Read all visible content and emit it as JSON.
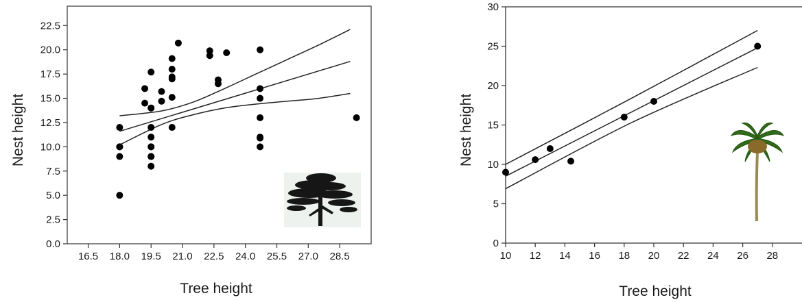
{
  "chart_data": [
    {
      "type": "scatter",
      "xlabel": "Tree height",
      "ylabel": "Nest height",
      "xlim": [
        15.5,
        30.0
      ],
      "ylim": [
        0,
        24.5
      ],
      "xticks": [
        "16.5",
        "18.0",
        "19.5",
        "21.0",
        "22.5",
        "24.0",
        "25.5",
        "27.0",
        "28.5"
      ],
      "yticks": [
        "0.0",
        "2.5",
        "5.0",
        "7.5",
        "10.0",
        "12.5",
        "15.0",
        "17.5",
        "20.0",
        "22.5"
      ],
      "grid": false,
      "legend": "none",
      "image": "cedar-tree-silhouette",
      "points": {
        "x": [
          18.0,
          18.0,
          18.0,
          18.0,
          18.0,
          19.2,
          19.2,
          19.5,
          19.5,
          19.5,
          19.5,
          19.5,
          19.5,
          19.5,
          19.5,
          19.5,
          19.5,
          20.0,
          20.0,
          20.5,
          20.5,
          20.5,
          20.5,
          20.5,
          20.5,
          20.8,
          22.3,
          22.3,
          22.7,
          22.7,
          23.1,
          24.7,
          24.7,
          24.7,
          24.7,
          24.7,
          24.7,
          24.7,
          29.3
        ],
        "y": [
          12.0,
          10.0,
          10.0,
          9.0,
          5.0,
          16.0,
          14.5,
          17.7,
          14.0,
          14.0,
          12.0,
          11.0,
          10.0,
          10.0,
          9.0,
          9.0,
          8.0,
          15.7,
          14.7,
          19.1,
          18.0,
          17.0,
          17.2,
          15.1,
          12.0,
          20.7,
          19.9,
          19.4,
          16.9,
          16.5,
          19.7,
          20.0,
          16.0,
          15.0,
          13.0,
          11.0,
          10.9,
          10.0,
          13.0
        ]
      },
      "fit": {
        "x": [
          18.0,
          29.0
        ],
        "y": [
          11.6,
          18.8
        ]
      },
      "ci_upper": {
        "x": [
          18.0,
          20.0,
          21.5,
          23.0,
          24.5,
          26.0,
          27.5,
          29.0
        ],
        "y": [
          13.2,
          13.7,
          14.6,
          16.0,
          17.5,
          19.0,
          20.5,
          22.1
        ]
      },
      "ci_lower": {
        "x": [
          18.0,
          20.0,
          21.5,
          23.0,
          24.5,
          26.0,
          27.5,
          29.0
        ],
        "y": [
          10.2,
          12.3,
          13.3,
          14.0,
          14.4,
          14.7,
          15.0,
          15.5
        ]
      }
    },
    {
      "type": "scatter",
      "xlabel": "Tree height",
      "ylabel": "Nest height",
      "xlim": [
        10,
        30
      ],
      "ylim": [
        0,
        30
      ],
      "xticks": [
        "10",
        "12",
        "14",
        "16",
        "18",
        "20",
        "22",
        "24",
        "26",
        "28"
      ],
      "yticks": [
        "0",
        "5",
        "10",
        "15",
        "20",
        "25",
        "30"
      ],
      "grid": false,
      "legend": "none",
      "image": "palm-tree",
      "points": {
        "x": [
          10.0,
          12.0,
          13.0,
          14.4,
          18.0,
          20.0,
          27.0
        ],
        "y": [
          9.0,
          10.6,
          12.0,
          10.4,
          16.0,
          18.0,
          25.0
        ]
      },
      "fit": {
        "x": [
          10.0,
          27.0
        ],
        "y": [
          8.5,
          24.8
        ]
      },
      "ci_upper": {
        "x": [
          10.0,
          18.5,
          27.0
        ],
        "y": [
          10.0,
          18.4,
          27.0
        ]
      },
      "ci_lower": {
        "x": [
          10.0,
          18.5,
          27.0
        ],
        "y": [
          6.9,
          15.3,
          22.3
        ]
      }
    }
  ]
}
